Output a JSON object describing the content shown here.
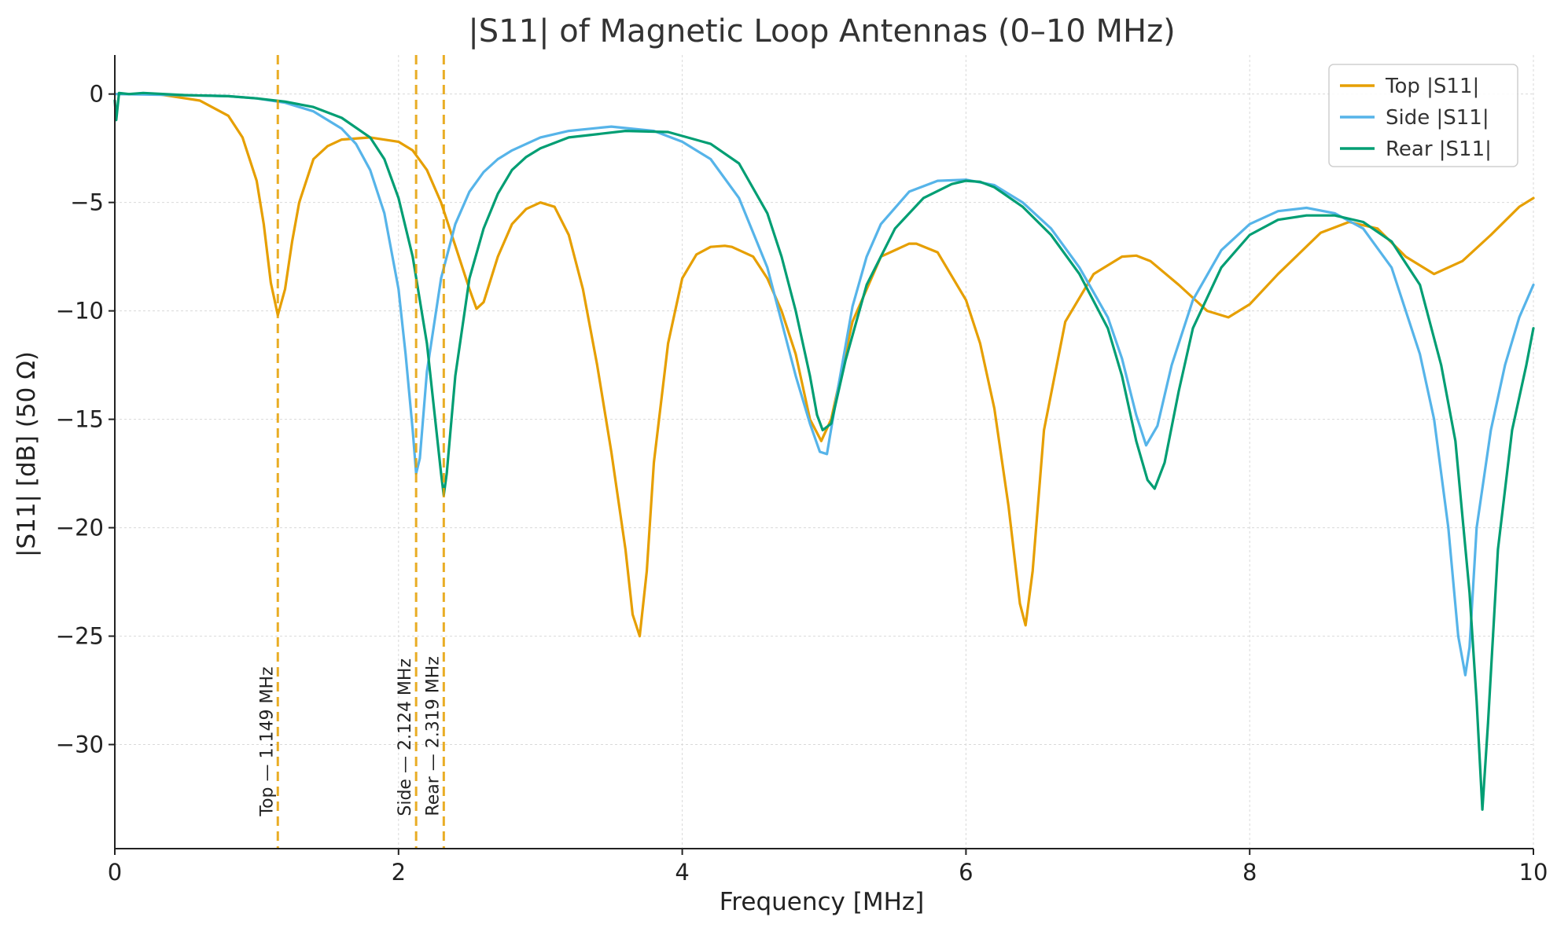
{
  "chart_data": {
    "type": "line",
    "title": "|S11| of Magnetic Loop Antennas (0–10 MHz)",
    "xlabel": "Frequency [MHz]",
    "ylabel": "|S11| [dB] (50 Ω)",
    "xlim": [
      0,
      10
    ],
    "ylim": [
      -34.8,
      1.8
    ],
    "x_ticks": [
      0,
      2,
      4,
      6,
      8,
      10
    ],
    "x_tick_labels": [
      "0",
      "2",
      "4",
      "6",
      "8",
      "10"
    ],
    "y_ticks": [
      0,
      -5,
      -10,
      -15,
      -20,
      -25,
      -30
    ],
    "y_tick_labels": [
      "0",
      "−5",
      "−10",
      "−15",
      "−20",
      "−25",
      "−30"
    ],
    "grid": true,
    "legend_position": "top-right",
    "series": [
      {
        "name": "Top |S11|",
        "color": "#E69F00",
        "x": [
          0.0,
          0.3,
          0.6,
          0.8,
          0.9,
          1.0,
          1.05,
          1.1,
          1.149,
          1.2,
          1.25,
          1.3,
          1.4,
          1.5,
          1.6,
          1.8,
          2.0,
          2.1,
          2.2,
          2.3,
          2.4,
          2.5,
          2.55,
          2.6,
          2.7,
          2.8,
          2.9,
          3.0,
          3.1,
          3.2,
          3.3,
          3.4,
          3.5,
          3.6,
          3.65,
          3.7,
          3.75,
          3.8,
          3.9,
          4.0,
          4.1,
          4.2,
          4.3,
          4.35,
          4.5,
          4.6,
          4.7,
          4.8,
          4.9,
          4.98,
          5.05,
          5.2,
          5.4,
          5.6,
          5.65,
          5.8,
          6.0,
          6.1,
          6.2,
          6.3,
          6.38,
          6.42,
          6.47,
          6.55,
          6.7,
          6.9,
          7.1,
          7.2,
          7.3,
          7.5,
          7.7,
          7.85,
          8.0,
          8.2,
          8.5,
          8.7,
          8.9,
          9.1,
          9.3,
          9.5,
          9.7,
          9.9,
          10.0
        ],
        "y": [
          0.0,
          0.0,
          -0.3,
          -1.0,
          -2.0,
          -4.0,
          -6.0,
          -8.7,
          -10.2,
          -9.0,
          -6.8,
          -5.0,
          -3.0,
          -2.4,
          -2.1,
          -2.0,
          -2.2,
          -2.6,
          -3.5,
          -5.0,
          -7.0,
          -9.0,
          -9.9,
          -9.6,
          -7.5,
          -6.0,
          -5.3,
          -5.0,
          -5.2,
          -6.5,
          -9.0,
          -12.5,
          -16.5,
          -21.0,
          -24.0,
          -25.0,
          -22.0,
          -17.0,
          -11.5,
          -8.5,
          -7.4,
          -7.05,
          -7.0,
          -7.05,
          -7.5,
          -8.5,
          -10.0,
          -12.0,
          -15.0,
          -16.0,
          -15.0,
          -10.5,
          -7.5,
          -6.9,
          -6.9,
          -7.3,
          -9.5,
          -11.5,
          -14.5,
          -19.0,
          -23.5,
          -24.5,
          -22.0,
          -15.5,
          -10.5,
          -8.3,
          -7.5,
          -7.45,
          -7.7,
          -8.8,
          -10.0,
          -10.3,
          -9.7,
          -8.3,
          -6.4,
          -5.9,
          -6.2,
          -7.5,
          -8.3,
          -7.7,
          -6.5,
          -5.2,
          -4.8
        ]
      },
      {
        "name": "Side |S11|",
        "color": "#56B4E9",
        "x": [
          0.0,
          0.5,
          0.8,
          1.0,
          1.2,
          1.4,
          1.6,
          1.7,
          1.8,
          1.9,
          2.0,
          2.05,
          2.1,
          2.124,
          2.15,
          2.2,
          2.3,
          2.4,
          2.5,
          2.6,
          2.7,
          2.8,
          3.0,
          3.2,
          3.5,
          3.8,
          4.0,
          4.2,
          4.4,
          4.6,
          4.7,
          4.8,
          4.9,
          4.97,
          5.02,
          5.1,
          5.2,
          5.3,
          5.4,
          5.6,
          5.8,
          6.0,
          6.2,
          6.4,
          6.6,
          6.8,
          7.0,
          7.1,
          7.2,
          7.27,
          7.35,
          7.45,
          7.6,
          7.8,
          8.0,
          8.2,
          8.4,
          8.6,
          8.8,
          9.0,
          9.2,
          9.3,
          9.4,
          9.47,
          9.52,
          9.55,
          9.6,
          9.7,
          9.8,
          9.9,
          10.0
        ],
        "y": [
          0.0,
          -0.05,
          -0.1,
          -0.2,
          -0.4,
          -0.8,
          -1.6,
          -2.3,
          -3.5,
          -5.5,
          -9.0,
          -12.0,
          -15.5,
          -17.5,
          -16.8,
          -12.8,
          -8.5,
          -6.0,
          -4.5,
          -3.6,
          -3.0,
          -2.6,
          -2.0,
          -1.7,
          -1.5,
          -1.7,
          -2.2,
          -3.0,
          -4.8,
          -8.0,
          -10.5,
          -13.0,
          -15.2,
          -16.5,
          -16.6,
          -13.5,
          -9.8,
          -7.5,
          -6.0,
          -4.5,
          -4.0,
          -3.95,
          -4.2,
          -5.0,
          -6.2,
          -8.0,
          -10.3,
          -12.2,
          -14.8,
          -16.2,
          -15.3,
          -12.5,
          -9.5,
          -7.2,
          -6.0,
          -5.4,
          -5.25,
          -5.5,
          -6.2,
          -8.0,
          -12.0,
          -15.0,
          -20.0,
          -25.0,
          -26.8,
          -25.5,
          -20.0,
          -15.5,
          -12.5,
          -10.3,
          -8.8
        ]
      },
      {
        "name": "Rear |S11|",
        "color": "#009E73",
        "x": [
          0.0,
          0.01,
          0.03,
          0.1,
          0.2,
          0.5,
          0.8,
          1.0,
          1.2,
          1.4,
          1.6,
          1.8,
          1.9,
          2.0,
          2.1,
          2.2,
          2.25,
          2.3,
          2.319,
          2.34,
          2.4,
          2.5,
          2.6,
          2.7,
          2.8,
          2.9,
          3.0,
          3.2,
          3.6,
          3.9,
          4.2,
          4.4,
          4.6,
          4.7,
          4.8,
          4.9,
          4.95,
          4.99,
          5.05,
          5.15,
          5.3,
          5.5,
          5.7,
          5.9,
          6.0,
          6.1,
          6.2,
          6.4,
          6.6,
          6.8,
          7.0,
          7.1,
          7.2,
          7.28,
          7.33,
          7.4,
          7.5,
          7.6,
          7.8,
          8.0,
          8.2,
          8.4,
          8.6,
          8.8,
          9.0,
          9.2,
          9.35,
          9.45,
          9.55,
          9.6,
          9.64,
          9.68,
          9.75,
          9.85,
          9.95,
          10.0
        ],
        "y": [
          -0.3,
          -1.2,
          0.05,
          0.0,
          0.05,
          -0.05,
          -0.1,
          -0.2,
          -0.35,
          -0.6,
          -1.1,
          -2.0,
          -3.0,
          -4.8,
          -7.5,
          -11.5,
          -14.5,
          -17.5,
          -18.5,
          -17.5,
          -13.0,
          -8.5,
          -6.2,
          -4.6,
          -3.5,
          -2.9,
          -2.5,
          -2.0,
          -1.7,
          -1.75,
          -2.3,
          -3.2,
          -5.5,
          -7.5,
          -10.0,
          -13.0,
          -14.8,
          -15.5,
          -15.2,
          -12.3,
          -8.8,
          -6.2,
          -4.8,
          -4.15,
          -4.0,
          -4.05,
          -4.3,
          -5.2,
          -6.5,
          -8.3,
          -10.8,
          -13.0,
          -16.0,
          -17.8,
          -18.2,
          -17.0,
          -13.7,
          -10.8,
          -8.0,
          -6.5,
          -5.8,
          -5.6,
          -5.6,
          -5.9,
          -6.8,
          -8.8,
          -12.5,
          -16.0,
          -23.0,
          -28.0,
          -33.0,
          -29.0,
          -21.0,
          -15.5,
          -12.5,
          -10.8
        ]
      }
    ],
    "vlines": [
      {
        "x": 1.149,
        "label": "Top — 1.149 MHz",
        "color": "#E69F00"
      },
      {
        "x": 2.124,
        "label": "Side — 2.124 MHz",
        "color": "#E69F00"
      },
      {
        "x": 2.319,
        "label": "Rear — 2.319 MHz",
        "color": "#E69F00"
      }
    ]
  }
}
